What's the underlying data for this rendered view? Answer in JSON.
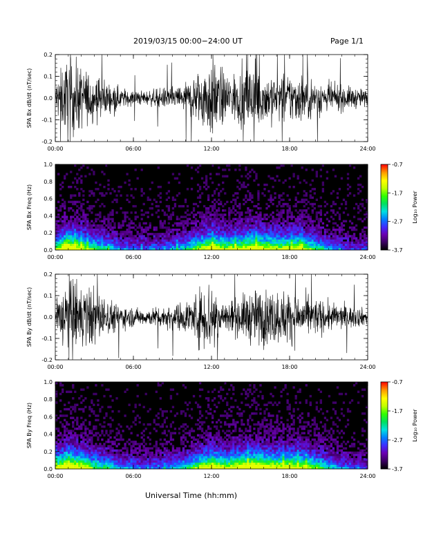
{
  "header": {
    "title": "2019/03/15  00:00−24:00 UT",
    "page": "Page 1/1"
  },
  "footer": {
    "xlabel": "Universal Time (hh:mm)"
  },
  "colorbar": {
    "label": "Log₁₀ Power",
    "ticks": [
      "-0.7",
      "-1.7",
      "-2.7",
      "-3.7"
    ],
    "range": [
      -3.7,
      -0.7
    ],
    "colormap": [
      "#000000",
      "#3a0060",
      "#6a00b0",
      "#3f2cff",
      "#0080ff",
      "#00e0e0",
      "#00e060",
      "#30ff00",
      "#c0ff00",
      "#ffff00",
      "#ffa000",
      "#ff0000"
    ]
  },
  "chart_data": [
    {
      "type": "line",
      "title": "",
      "xlabel": "",
      "ylabel": "SPA Bx dB/dt (nT/sec)",
      "xlim": [
        "00:00",
        "24:00"
      ],
      "x_ticks": [
        "00:00",
        "06:00",
        "12:00",
        "18:00",
        "24:00"
      ],
      "ylim": [
        -0.2,
        0.2
      ],
      "y_ticks": [
        "-0.2",
        "-0.1",
        "0.0",
        "0.1",
        "0.2"
      ],
      "series": [
        {
          "color": "#000000",
          "x": [
            "00:00",
            "01:00",
            "02:00",
            "03:00",
            "04:00",
            "05:00",
            "06:00",
            "07:00",
            "08:00",
            "09:00",
            "10:00",
            "11:00",
            "12:00",
            "13:00",
            "14:00",
            "15:00",
            "16:00",
            "17:00",
            "18:00",
            "19:00",
            "20:00",
            "21:00",
            "22:00",
            "23:00",
            "24:00"
          ],
          "envelope_halfwidth": [
            0.08,
            0.2,
            0.15,
            0.11,
            0.08,
            0.05,
            0.035,
            0.035,
            0.045,
            0.055,
            0.07,
            0.13,
            0.2,
            0.12,
            0.12,
            0.16,
            0.13,
            0.11,
            0.12,
            0.12,
            0.09,
            0.07,
            0.06,
            0.05,
            0.04
          ]
        }
      ]
    },
    {
      "type": "heatmap",
      "title": "",
      "xlabel": "",
      "ylabel": "SPA Bx Freq (Hz)",
      "xlim": [
        "00:00",
        "24:00"
      ],
      "x_ticks": [
        "00:00",
        "06:00",
        "12:00",
        "18:00",
        "24:00"
      ],
      "ylim": [
        0.0,
        1.0
      ],
      "y_ticks": [
        "0.0",
        "0.2",
        "0.4",
        "0.6",
        "0.8",
        "1.0"
      ],
      "colorbar_range": [
        -3.7,
        -0.7
      ],
      "hourly_activity": [
        0.6,
        1.0,
        0.75,
        0.55,
        0.45,
        0.35,
        0.3,
        0.3,
        0.32,
        0.38,
        0.45,
        0.65,
        0.85,
        0.7,
        0.75,
        0.85,
        0.8,
        0.7,
        0.75,
        0.72,
        0.55,
        0.4,
        0.3,
        0.25,
        0.25
      ]
    },
    {
      "type": "line",
      "title": "",
      "xlabel": "",
      "ylabel": "SPA By dB/dt (nT/sec)",
      "xlim": [
        "00:00",
        "24:00"
      ],
      "x_ticks": [
        "00:00",
        "06:00",
        "12:00",
        "18:00",
        "24:00"
      ],
      "ylim": [
        -0.2,
        0.2
      ],
      "y_ticks": [
        "-0.2",
        "-0.1",
        "0.0",
        "0.1",
        "0.2"
      ],
      "series": [
        {
          "color": "#000000",
          "x": [
            "00:00",
            "01:00",
            "02:00",
            "03:00",
            "04:00",
            "05:00",
            "06:00",
            "07:00",
            "08:00",
            "09:00",
            "10:00",
            "11:00",
            "12:00",
            "13:00",
            "14:00",
            "15:00",
            "16:00",
            "17:00",
            "18:00",
            "19:00",
            "20:00",
            "21:00",
            "22:00",
            "23:00",
            "24:00"
          ],
          "envelope_halfwidth": [
            0.1,
            0.2,
            0.16,
            0.14,
            0.09,
            0.06,
            0.045,
            0.04,
            0.05,
            0.06,
            0.075,
            0.13,
            0.2,
            0.08,
            0.09,
            0.13,
            0.14,
            0.13,
            0.13,
            0.1,
            0.09,
            0.07,
            0.06,
            0.05,
            0.04
          ]
        }
      ]
    },
    {
      "type": "heatmap",
      "title": "",
      "xlabel": "",
      "ylabel": "SPA By Freq (Hz)",
      "xlim": [
        "00:00",
        "24:00"
      ],
      "x_ticks": [
        "00:00",
        "06:00",
        "12:00",
        "18:00",
        "24:00"
      ],
      "ylim": [
        0.0,
        1.0
      ],
      "y_ticks": [
        "0.0",
        "0.2",
        "0.4",
        "0.6",
        "0.8",
        "1.0"
      ],
      "colorbar_range": [
        -3.7,
        -0.7
      ],
      "hourly_activity": [
        0.65,
        1.0,
        0.8,
        0.6,
        0.5,
        0.38,
        0.32,
        0.32,
        0.34,
        0.4,
        0.48,
        0.68,
        0.88,
        0.72,
        0.8,
        0.9,
        0.85,
        0.8,
        0.82,
        0.75,
        0.6,
        0.45,
        0.35,
        0.28,
        0.26
      ]
    }
  ]
}
